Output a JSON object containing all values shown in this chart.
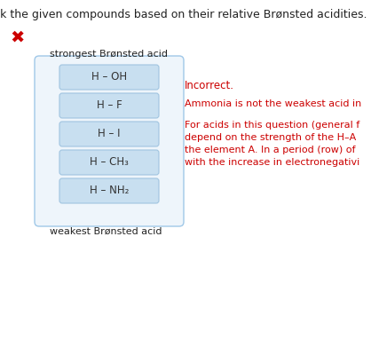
{
  "title": "Rank the given compounds based on their relative Brønsted acidities.",
  "title_fontsize": 9,
  "strongest_label": "strongest Brønsted acid",
  "weakest_label": "weakest Brønsted acid",
  "compounds": [
    "H – OH",
    "H – F",
    "H – I",
    "H – CH₃",
    "H – NH₂"
  ],
  "box_bg_color": "#c8dff0",
  "box_border_color": "#a0c4e0",
  "outer_box_bg": "#eef5fb",
  "outer_box_border": "#a0c8e8",
  "feedback_incorrect": "Incorrect.",
  "feedback_line2": "Ammonia is not the weakest acid in",
  "feedback_line3": "For acids in this question (general f",
  "feedback_line4": "depend on the strength of the H–A",
  "feedback_line5": "the element A. In a period (row) of",
  "feedback_line6": "with the increase in electronegativi",
  "feedback_color": "#cc0000",
  "x_mark_color": "#cc0000",
  "bg_color": "#ffffff",
  "label_color": "#222222",
  "compound_text_color": "#333333"
}
